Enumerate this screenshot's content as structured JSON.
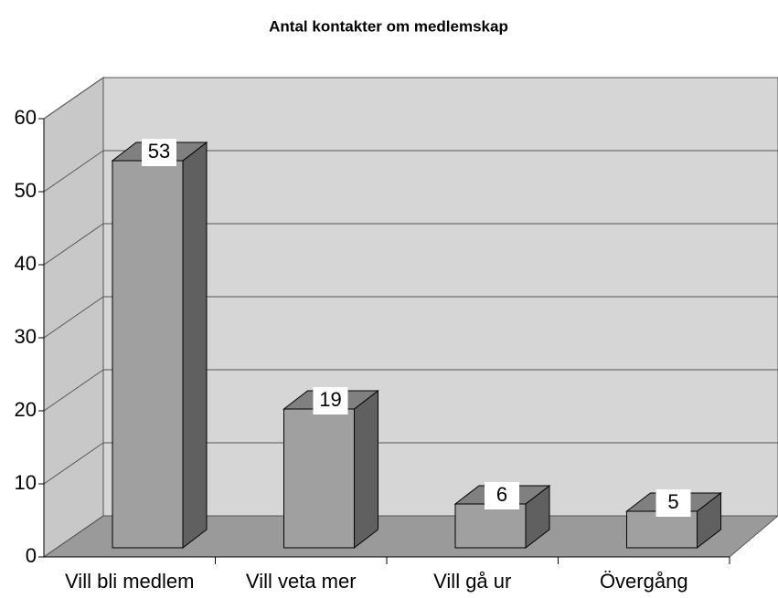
{
  "chart_data": {
    "type": "bar3d",
    "title": "Antal kontakter om medlemskap",
    "categories": [
      "Vill bli medlem",
      "Vill veta mer",
      "Vill gå ur",
      "Övergång"
    ],
    "values": [
      53,
      19,
      6,
      5
    ],
    "ylim": [
      0,
      60
    ],
    "yticks": [
      0,
      10,
      20,
      30,
      40,
      50,
      60
    ],
    "grid": true,
    "color": "#a0a0a0"
  }
}
